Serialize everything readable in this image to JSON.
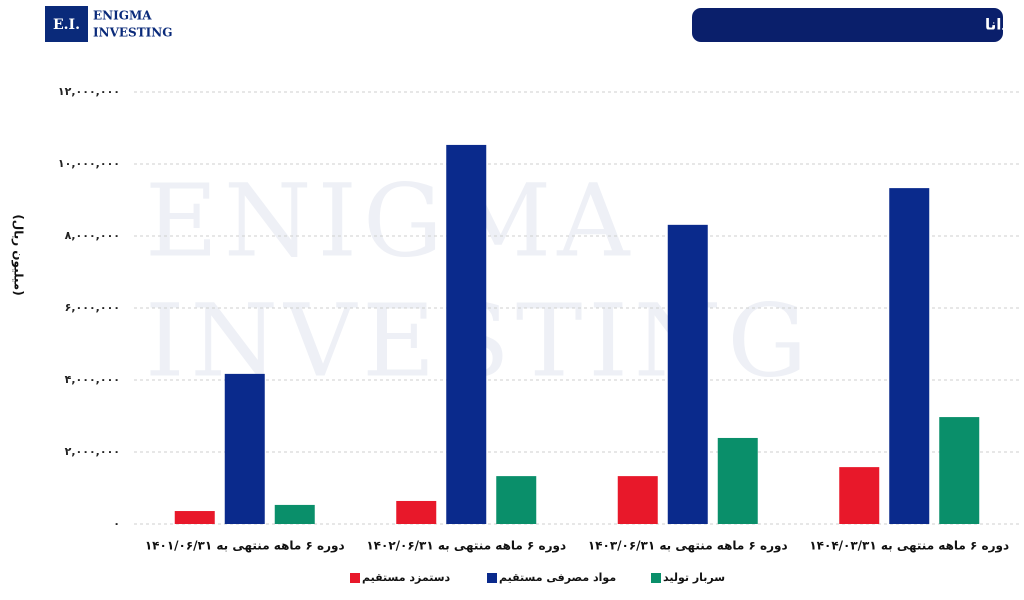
{
  "logo": {
    "mark": "E.I.",
    "line1": "Enigma",
    "line2": "Investing"
  },
  "watermark": [
    "Enigma",
    "Investing"
  ],
  "chart_data": {
    "type": "bar",
    "title": "بهای تمام شده ددانا",
    "y_label": "(میلیون ریال)",
    "categories": [
      "دوره ۶ ماهه منتهی به ۱۴۰۱/۰۶/۳۱",
      "دوره ۶ ماهه منتهی به ۱۴۰۲/۰۶/۳۱",
      "دوره ۶ ماهه منتهی به ۱۴۰۳/۰۶/۳۱",
      "دوره ۶ ماهه منتهی به ۱۴۰۴/۰۳/۳۱"
    ],
    "series": [
      {
        "name": "دستمزد مستقیم",
        "color": "#e8182a",
        "values": [
          360000,
          640000,
          1330000,
          1580000
        ]
      },
      {
        "name": "مواد مصرفی مستقیم",
        "color": "#0a2a8c",
        "values": [
          4170000,
          10530000,
          8310000,
          9330000
        ]
      },
      {
        "name": "سربار تولید",
        "color": "#0a8f6a",
        "values": [
          530000,
          1330000,
          2390000,
          2970000
        ]
      }
    ],
    "ylim": [
      0,
      12000000
    ],
    "yticks": [
      {
        "value": 0,
        "label": "۰"
      },
      {
        "value": 2000000,
        "label": "۲,۰۰۰,۰۰۰"
      },
      {
        "value": 4000000,
        "label": "۴,۰۰۰,۰۰۰"
      },
      {
        "value": 6000000,
        "label": "۶,۰۰۰,۰۰۰"
      },
      {
        "value": 8000000,
        "label": "۸,۰۰۰,۰۰۰"
      },
      {
        "value": 10000000,
        "label": "۱۰,۰۰۰,۰۰۰"
      },
      {
        "value": 12000000,
        "label": "۱۲,۰۰۰,۰۰۰"
      }
    ],
    "grid": true
  }
}
